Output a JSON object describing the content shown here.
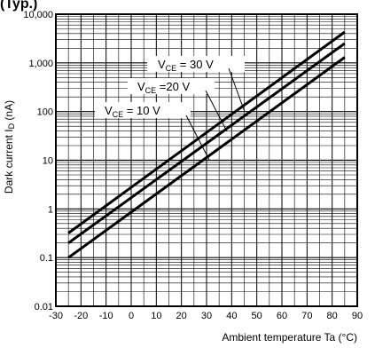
{
  "header": {
    "text": "(Typ.)"
  },
  "chart_data": {
    "type": "line",
    "title": "",
    "xlabel": "Ambient temperature Ta (°C)",
    "ylabel_main": "Dark current",
    "ylabel_symbol": "I",
    "ylabel_subscript": "D",
    "ylabel_unit": "(nA)",
    "xlim": [
      -30,
      90
    ],
    "ylim": [
      0.01,
      10000
    ],
    "yscale": "log",
    "grid": true,
    "x_ticks": [
      -30,
      -20,
      -10,
      0,
      10,
      20,
      30,
      40,
      50,
      60,
      70,
      80,
      90
    ],
    "x_tick_labels": [
      "-30",
      "-20",
      "-10",
      "0",
      "10",
      "20",
      "30",
      "40",
      "50",
      "60",
      "70",
      "80",
      "90"
    ],
    "y_ticks": [
      0.01,
      0.1,
      1,
      10,
      100,
      1000,
      10000
    ],
    "y_tick_labels": [
      "0.01",
      "0.1",
      "1",
      "10",
      "100",
      "1,000",
      "10,000"
    ],
    "series": [
      {
        "label_prefix": "V",
        "label_sub": "CE",
        "label_value": " = 30 V",
        "x": [
          -25,
          85
        ],
        "y": [
          0.32,
          4300
        ]
      },
      {
        "label_prefix": "V",
        "label_sub": "CE",
        "label_value": " =20 V",
        "x": [
          -25,
          85
        ],
        "y": [
          0.2,
          2500
        ]
      },
      {
        "label_prefix": "V",
        "label_sub": "CE",
        "label_value": " = 10 V",
        "x": [
          -25,
          85
        ],
        "y": [
          0.1,
          1300
        ]
      }
    ]
  }
}
